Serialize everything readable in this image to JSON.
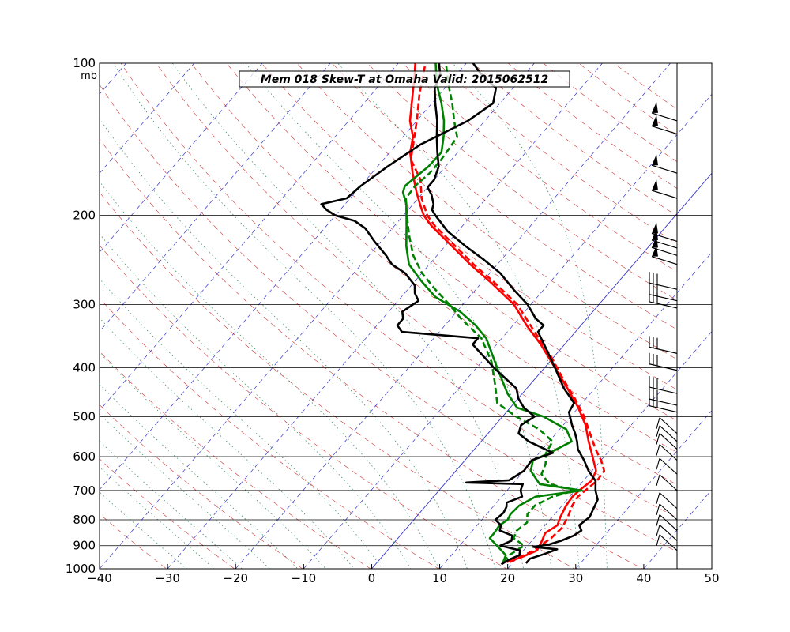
{
  "chart_data": {
    "type": "line",
    "title": "Mem 018  Skew-T at Omaha   Valid: 2015062512",
    "pressure_unit_label": "mb",
    "xlim": [
      -40,
      50
    ],
    "x_ticks": [
      -40,
      -30,
      -20,
      -10,
      0,
      10,
      20,
      30,
      40,
      50
    ],
    "ylim": [
      1000,
      100
    ],
    "y_scale": "log",
    "y_ticks": [
      1000,
      900,
      800,
      700,
      600,
      500,
      400,
      300,
      200,
      100
    ],
    "grid": true,
    "colors": {
      "temperature": "#ff0000",
      "dewpoint": "#008000",
      "second_profile": "#000000",
      "dry_adiabat": "#cc3333",
      "moist_adiabat": "#2e8b57",
      "isotherm": "#3333cc",
      "isobar": "#000000"
    },
    "series": [
      {
        "style": "solid",
        "color": "#ff0000",
        "values": [
          {
            "p": 970,
            "t": 19
          },
          {
            "p": 950,
            "t": 20.5
          },
          {
            "p": 920,
            "t": 22
          },
          {
            "p": 880,
            "t": 21.5
          },
          {
            "p": 850,
            "t": 21
          },
          {
            "p": 820,
            "t": 21.8
          },
          {
            "p": 790,
            "t": 21.2
          },
          {
            "p": 750,
            "t": 20.6
          },
          {
            "p": 720,
            "t": 20.4
          },
          {
            "p": 700,
            "t": 20.6
          },
          {
            "p": 670,
            "t": 21.2
          },
          {
            "p": 640,
            "t": 20.6
          },
          {
            "p": 600,
            "t": 18.3
          },
          {
            "p": 560,
            "t": 15.8
          },
          {
            "p": 520,
            "t": 13.3
          },
          {
            "p": 480,
            "t": 10
          },
          {
            "p": 440,
            "t": 6
          },
          {
            "p": 400,
            "t": 1.5
          },
          {
            "p": 360,
            "t": -3.5
          },
          {
            "p": 330,
            "t": -8
          },
          {
            "p": 300,
            "t": -12.5
          },
          {
            "p": 270,
            "t": -19
          },
          {
            "p": 250,
            "t": -24
          },
          {
            "p": 230,
            "t": -29
          },
          {
            "p": 210,
            "t": -34.5
          },
          {
            "p": 200,
            "t": -37
          },
          {
            "p": 190,
            "t": -39
          },
          {
            "p": 180,
            "t": -41
          },
          {
            "p": 165,
            "t": -44
          },
          {
            "p": 150,
            "t": -47
          },
          {
            "p": 140,
            "t": -48.5
          },
          {
            "p": 130,
            "t": -51
          },
          {
            "p": 115,
            "t": -54
          },
          {
            "p": 106,
            "t": -56
          },
          {
            "p": 100,
            "t": -57.5
          }
        ]
      },
      {
        "style": "dashed",
        "color": "#ff0000",
        "values": [
          {
            "p": 970,
            "t": 19.5
          },
          {
            "p": 920,
            "t": 21.5
          },
          {
            "p": 870,
            "t": 22.5
          },
          {
            "p": 830,
            "t": 22.8
          },
          {
            "p": 790,
            "t": 22.3
          },
          {
            "p": 750,
            "t": 21.5
          },
          {
            "p": 720,
            "t": 21.2
          },
          {
            "p": 700,
            "t": 21.5
          },
          {
            "p": 670,
            "t": 22
          },
          {
            "p": 640,
            "t": 21.8
          },
          {
            "p": 610,
            "t": 20
          },
          {
            "p": 580,
            "t": 17.8
          },
          {
            "p": 540,
            "t": 15
          },
          {
            "p": 500,
            "t": 12
          },
          {
            "p": 460,
            "t": 8.3
          },
          {
            "p": 420,
            "t": 4
          },
          {
            "p": 380,
            "t": -0.5
          },
          {
            "p": 340,
            "t": -6
          },
          {
            "p": 300,
            "t": -12
          },
          {
            "p": 270,
            "t": -18.5
          },
          {
            "p": 250,
            "t": -23.5
          },
          {
            "p": 230,
            "t": -28.5
          },
          {
            "p": 210,
            "t": -34
          },
          {
            "p": 200,
            "t": -36.5
          },
          {
            "p": 185,
            "t": -39.5
          },
          {
            "p": 170,
            "t": -42
          },
          {
            "p": 155,
            "t": -46
          },
          {
            "p": 145,
            "t": -47.5
          },
          {
            "p": 130,
            "t": -50
          },
          {
            "p": 115,
            "t": -53
          },
          {
            "p": 100,
            "t": -56
          }
        ]
      },
      {
        "style": "solid",
        "color": "#008000",
        "values": [
          {
            "p": 970,
            "t": 18.5
          },
          {
            "p": 940,
            "t": 18
          },
          {
            "p": 900,
            "t": 15.5
          },
          {
            "p": 870,
            "t": 13.5
          },
          {
            "p": 850,
            "t": 13.5
          },
          {
            "p": 820,
            "t": 13.3
          },
          {
            "p": 800,
            "t": 13.8
          },
          {
            "p": 780,
            "t": 13.5
          },
          {
            "p": 750,
            "t": 13.7
          },
          {
            "p": 720,
            "t": 15
          },
          {
            "p": 700,
            "t": 21
          },
          {
            "p": 680,
            "t": 14
          },
          {
            "p": 640,
            "t": 11
          },
          {
            "p": 610,
            "t": 10
          },
          {
            "p": 590,
            "t": 11.5
          },
          {
            "p": 560,
            "t": 13.3
          },
          {
            "p": 530,
            "t": 11
          },
          {
            "p": 500,
            "t": 6
          },
          {
            "p": 480,
            "t": 1
          },
          {
            "p": 450,
            "t": -2.2
          },
          {
            "p": 400,
            "t": -7
          },
          {
            "p": 350,
            "t": -12.3
          },
          {
            "p": 330,
            "t": -15.5
          },
          {
            "p": 310,
            "t": -19.5
          },
          {
            "p": 290,
            "t": -25
          },
          {
            "p": 270,
            "t": -29
          },
          {
            "p": 250,
            "t": -33
          },
          {
            "p": 230,
            "t": -35.7
          },
          {
            "p": 210,
            "t": -38.2
          },
          {
            "p": 190,
            "t": -41
          },
          {
            "p": 180,
            "t": -43
          },
          {
            "p": 175,
            "t": -43.5
          },
          {
            "p": 170,
            "t": -43.2
          },
          {
            "p": 160,
            "t": -42.5
          },
          {
            "p": 150,
            "t": -42.4
          },
          {
            "p": 140,
            "t": -44
          },
          {
            "p": 130,
            "t": -46
          },
          {
            "p": 120,
            "t": -48.6
          },
          {
            "p": 110,
            "t": -51.7
          },
          {
            "p": 100,
            "t": -54.5
          }
        ]
      },
      {
        "style": "dashed",
        "color": "#008000",
        "values": [
          {
            "p": 970,
            "t": 18.5
          },
          {
            "p": 940,
            "t": 18.5
          },
          {
            "p": 900,
            "t": 19.5
          },
          {
            "p": 870,
            "t": 17
          },
          {
            "p": 840,
            "t": 16.5
          },
          {
            "p": 810,
            "t": 17
          },
          {
            "p": 780,
            "t": 16
          },
          {
            "p": 750,
            "t": 16
          },
          {
            "p": 720,
            "t": 17.5
          },
          {
            "p": 700,
            "t": 20
          },
          {
            "p": 680,
            "t": 15.5
          },
          {
            "p": 650,
            "t": 13
          },
          {
            "p": 620,
            "t": 12.3
          },
          {
            "p": 590,
            "t": 11
          },
          {
            "p": 560,
            "t": 10.5
          },
          {
            "p": 530,
            "t": 7
          },
          {
            "p": 500,
            "t": 2
          },
          {
            "p": 470,
            "t": -2.5
          },
          {
            "p": 430,
            "t": -5.3
          },
          {
            "p": 390,
            "t": -8.5
          },
          {
            "p": 350,
            "t": -13
          },
          {
            "p": 320,
            "t": -18.5
          },
          {
            "p": 300,
            "t": -22
          },
          {
            "p": 280,
            "t": -26
          },
          {
            "p": 260,
            "t": -30
          },
          {
            "p": 240,
            "t": -33.5
          },
          {
            "p": 220,
            "t": -36.5
          },
          {
            "p": 200,
            "t": -39.5
          },
          {
            "p": 185,
            "t": -41.8
          },
          {
            "p": 175,
            "t": -42
          },
          {
            "p": 165,
            "t": -41.5
          },
          {
            "p": 155,
            "t": -41.5
          },
          {
            "p": 140,
            "t": -42
          },
          {
            "p": 130,
            "t": -44.5
          },
          {
            "p": 120,
            "t": -47
          },
          {
            "p": 110,
            "t": -50
          },
          {
            "p": 100,
            "t": -53
          }
        ]
      },
      {
        "style": "solid",
        "color": "#000000",
        "values": [
          {
            "p": 975,
            "t": 22
          },
          {
            "p": 955,
            "t": 22
          },
          {
            "p": 935,
            "t": 23.5
          },
          {
            "p": 915,
            "t": 24.8
          },
          {
            "p": 905,
            "t": 21
          },
          {
            "p": 895,
            "t": 23
          },
          {
            "p": 880,
            "t": 24.3
          },
          {
            "p": 860,
            "t": 25.5
          },
          {
            "p": 840,
            "t": 26
          },
          {
            "p": 820,
            "t": 25
          },
          {
            "p": 790,
            "t": 25.5
          },
          {
            "p": 760,
            "t": 25
          },
          {
            "p": 730,
            "t": 24.5
          },
          {
            "p": 700,
            "t": 23
          },
          {
            "p": 670,
            "t": 21.8
          },
          {
            "p": 640,
            "t": 19.5
          },
          {
            "p": 610,
            "t": 17.5
          },
          {
            "p": 580,
            "t": 15.2
          },
          {
            "p": 560,
            "t": 14.1
          },
          {
            "p": 540,
            "t": 12.8
          },
          {
            "p": 520,
            "t": 11.3
          },
          {
            "p": 490,
            "t": 9.2
          },
          {
            "p": 470,
            "t": 8.8
          },
          {
            "p": 440,
            "t": 5.5
          },
          {
            "p": 400,
            "t": 1.5
          },
          {
            "p": 360,
            "t": -3
          },
          {
            "p": 340,
            "t": -5.5
          },
          {
            "p": 330,
            "t": -5.5
          },
          {
            "p": 320,
            "t": -7.5
          },
          {
            "p": 300,
            "t": -10.5
          },
          {
            "p": 280,
            "t": -14.5
          },
          {
            "p": 260,
            "t": -18.5
          },
          {
            "p": 245,
            "t": -22.5
          },
          {
            "p": 230,
            "t": -27
          },
          {
            "p": 215,
            "t": -31.5
          },
          {
            "p": 200,
            "t": -35.3
          },
          {
            "p": 195,
            "t": -36.5
          },
          {
            "p": 190,
            "t": -37
          },
          {
            "p": 182,
            "t": -38.5
          },
          {
            "p": 176,
            "t": -40
          },
          {
            "p": 170,
            "t": -40
          },
          {
            "p": 160,
            "t": -41
          },
          {
            "p": 150,
            "t": -43
          },
          {
            "p": 140,
            "t": -45
          },
          {
            "p": 130,
            "t": -47
          },
          {
            "p": 120,
            "t": -49.5
          },
          {
            "p": 112,
            "t": -51.5
          },
          {
            "p": 105,
            "t": -52.5
          },
          {
            "p": 100,
            "t": -54
          }
        ]
      },
      {
        "style": "solid",
        "color": "#000000",
        "values": [
          {
            "p": 980,
            "t": 18.5
          },
          {
            "p": 960,
            "t": 19
          },
          {
            "p": 940,
            "t": 20
          },
          {
            "p": 920,
            "t": 19.5
          },
          {
            "p": 900,
            "t": 16
          },
          {
            "p": 880,
            "t": 17
          },
          {
            "p": 860,
            "t": 16.5
          },
          {
            "p": 840,
            "t": 14
          },
          {
            "p": 820,
            "t": 13.5
          },
          {
            "p": 800,
            "t": 12
          },
          {
            "p": 775,
            "t": 12.3
          },
          {
            "p": 755,
            "t": 12
          },
          {
            "p": 740,
            "t": 11.5
          },
          {
            "p": 720,
            "t": 13
          },
          {
            "p": 700,
            "t": 12
          },
          {
            "p": 680,
            "t": 11.5
          },
          {
            "p": 675,
            "t": 3
          },
          {
            "p": 668,
            "t": 9
          },
          {
            "p": 640,
            "t": 10
          },
          {
            "p": 610,
            "t": 9.8
          },
          {
            "p": 590,
            "t": 12
          },
          {
            "p": 560,
            "t": 7
          },
          {
            "p": 540,
            "t": 4.5
          },
          {
            "p": 520,
            "t": 3.8
          },
          {
            "p": 500,
            "t": 4.7
          },
          {
            "p": 480,
            "t": 2
          },
          {
            "p": 460,
            "t": 0
          },
          {
            "p": 440,
            "t": -1.5
          },
          {
            "p": 400,
            "t": -7.5
          },
          {
            "p": 360,
            "t": -13.5
          },
          {
            "p": 350,
            "t": -13.5
          },
          {
            "p": 340,
            "t": -25.5
          },
          {
            "p": 330,
            "t": -27
          },
          {
            "p": 320,
            "t": -27
          },
          {
            "p": 310,
            "t": -28
          },
          {
            "p": 295,
            "t": -27
          },
          {
            "p": 285,
            "t": -28.5
          },
          {
            "p": 275,
            "t": -29.5
          },
          {
            "p": 260,
            "t": -32.5
          },
          {
            "p": 250,
            "t": -35.5
          },
          {
            "p": 240,
            "t": -37.5
          },
          {
            "p": 225,
            "t": -41
          },
          {
            "p": 212,
            "t": -44
          },
          {
            "p": 205,
            "t": -46.5
          },
          {
            "p": 200,
            "t": -50
          },
          {
            "p": 195,
            "t": -52
          },
          {
            "p": 190,
            "t": -53.5
          },
          {
            "p": 185,
            "t": -50.5
          },
          {
            "p": 175,
            "t": -50
          },
          {
            "p": 160,
            "t": -48.5
          },
          {
            "p": 145,
            "t": -46.5
          },
          {
            "p": 130,
            "t": -42.5
          },
          {
            "p": 120,
            "t": -41
          },
          {
            "p": 112,
            "t": -42.5
          },
          {
            "p": 105,
            "t": -46.5
          },
          {
            "p": 100,
            "t": -49
          }
        ]
      }
    ],
    "wind_barbs": [
      {
        "p": 130,
        "kind": "flag"
      },
      {
        "p": 138,
        "kind": "flag"
      },
      {
        "p": 165,
        "kind": "flag"
      },
      {
        "p": 185,
        "kind": "flag"
      },
      {
        "p": 225,
        "kind": "flag"
      },
      {
        "p": 232,
        "kind": "flag"
      },
      {
        "p": 240,
        "kind": "flag"
      },
      {
        "p": 250,
        "kind": "flag"
      },
      {
        "p": 280,
        "kind": "barb"
      },
      {
        "p": 295,
        "kind": "barb"
      },
      {
        "p": 305,
        "kind": "barb"
      },
      {
        "p": 375,
        "kind": "barb"
      },
      {
        "p": 405,
        "kind": "barb"
      },
      {
        "p": 450,
        "kind": "barb"
      },
      {
        "p": 475,
        "kind": "barb"
      },
      {
        "p": 490,
        "kind": "barb"
      },
      {
        "p": 540,
        "kind": "light"
      },
      {
        "p": 560,
        "kind": "light"
      },
      {
        "p": 580,
        "kind": "light"
      },
      {
        "p": 610,
        "kind": "light"
      },
      {
        "p": 650,
        "kind": "light"
      },
      {
        "p": 700,
        "kind": "light"
      },
      {
        "p": 760,
        "kind": "light"
      },
      {
        "p": 800,
        "kind": "light"
      },
      {
        "p": 840,
        "kind": "light"
      },
      {
        "p": 880,
        "kind": "light"
      },
      {
        "p": 920,
        "kind": "light"
      }
    ]
  }
}
